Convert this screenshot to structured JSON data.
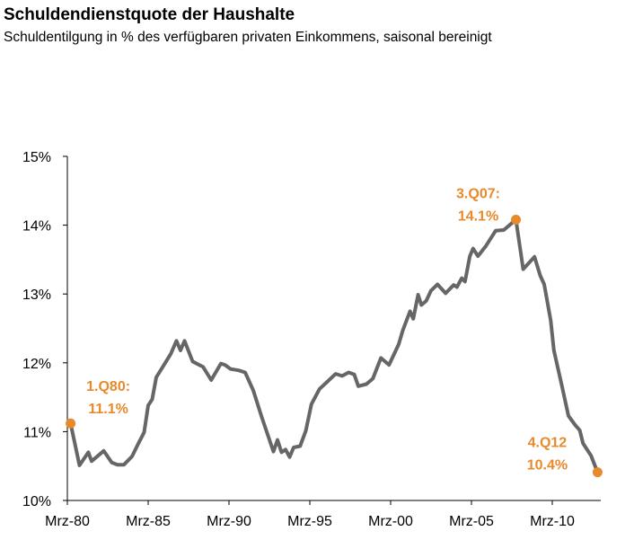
{
  "chart_data": {
    "type": "line",
    "title": "Schuldendienstquote der Haushalte",
    "subtitle": "Schuldentilgung in % des verfügbaren privaten Einkommens, saisonal bereinigt",
    "xlabel": "",
    "ylabel": "",
    "xlim": [
      1980,
      2013
    ],
    "ylim": [
      10,
      15
    ],
    "x_ticks": [
      {
        "value": 1980,
        "label": "Mrz-80"
      },
      {
        "value": 1985,
        "label": "Mrz-85"
      },
      {
        "value": 1990,
        "label": "Mrz-90"
      },
      {
        "value": 1995,
        "label": "Mrz-95"
      },
      {
        "value": 2000,
        "label": "Mrz-00"
      },
      {
        "value": 2005,
        "label": "Mrz-05"
      },
      {
        "value": 2010,
        "label": "Mrz-10"
      }
    ],
    "y_ticks": [
      {
        "value": 10,
        "label": "10%"
      },
      {
        "value": 11,
        "label": "11%"
      },
      {
        "value": 12,
        "label": "12%"
      },
      {
        "value": 13,
        "label": "13%"
      },
      {
        "value": 14,
        "label": "14%"
      },
      {
        "value": 15,
        "label": "15%"
      }
    ],
    "grid": false,
    "series": [
      {
        "name": "Schuldendienstquote",
        "color": "#666666",
        "x": [
          1980.2,
          1980.75,
          1981.3,
          1981.5,
          1982.25,
          1982.75,
          1983.1,
          1983.5,
          1984.0,
          1984.4,
          1984.75,
          1985.0,
          1985.25,
          1985.5,
          1985.9,
          1986.4,
          1986.75,
          1987.0,
          1987.25,
          1987.75,
          1988.4,
          1988.9,
          1989.5,
          1989.75,
          1990.1,
          1990.6,
          1991.0,
          1991.5,
          1992.0,
          1992.75,
          1993.0,
          1993.25,
          1993.5,
          1993.75,
          1994.0,
          1994.4,
          1994.75,
          1995.1,
          1995.6,
          1996.1,
          1996.6,
          1997.0,
          1997.4,
          1997.75,
          1998.0,
          1998.5,
          1998.9,
          1999.4,
          1999.9,
          2000.5,
          2000.75,
          2001.2,
          2001.4,
          2001.7,
          2001.9,
          2002.2,
          2002.5,
          2002.9,
          2003.4,
          2003.9,
          2004.1,
          2004.4,
          2004.6,
          2004.9,
          2005.1,
          2005.4,
          2005.9,
          2006.5,
          2007.0,
          2007.5,
          2007.75,
          2008.2,
          2008.9,
          2009.25,
          2009.5,
          2009.9,
          2010.1,
          2010.6,
          2011.0,
          2011.4,
          2011.7,
          2011.9,
          2012.4,
          2012.8
        ],
        "values": [
          11.12,
          10.51,
          10.7,
          10.57,
          10.72,
          10.55,
          10.52,
          10.52,
          10.64,
          10.83,
          10.99,
          11.38,
          11.47,
          11.79,
          11.94,
          12.13,
          12.32,
          12.18,
          12.32,
          12.02,
          11.94,
          11.75,
          11.99,
          11.97,
          11.91,
          11.89,
          11.86,
          11.6,
          11.23,
          10.71,
          10.88,
          10.7,
          10.74,
          10.63,
          10.77,
          10.79,
          11.01,
          11.4,
          11.62,
          11.73,
          11.84,
          11.81,
          11.86,
          11.83,
          11.66,
          11.69,
          11.77,
          12.07,
          11.97,
          12.27,
          12.47,
          12.75,
          12.64,
          12.99,
          12.84,
          12.9,
          13.05,
          13.14,
          13.01,
          13.13,
          13.1,
          13.23,
          13.18,
          13.55,
          13.66,
          13.55,
          13.7,
          13.92,
          13.93,
          14.03,
          14.08,
          13.36,
          13.54,
          13.27,
          13.14,
          12.62,
          12.18,
          11.66,
          11.23,
          11.1,
          11.02,
          10.83,
          10.65,
          10.41
        ]
      }
    ],
    "annotations": [
      {
        "x": 1980.2,
        "y": 11.12,
        "line1": "1.Q80:",
        "line2": "11.1%",
        "color": "#E8892B"
      },
      {
        "x": 2007.75,
        "y": 14.08,
        "line1": "3.Q07:",
        "line2": "14.1%",
        "color": "#E8892B"
      },
      {
        "x": 2012.8,
        "y": 10.41,
        "line1": "4.Q12",
        "line2": "10.4%",
        "color": "#E8892B"
      }
    ]
  }
}
